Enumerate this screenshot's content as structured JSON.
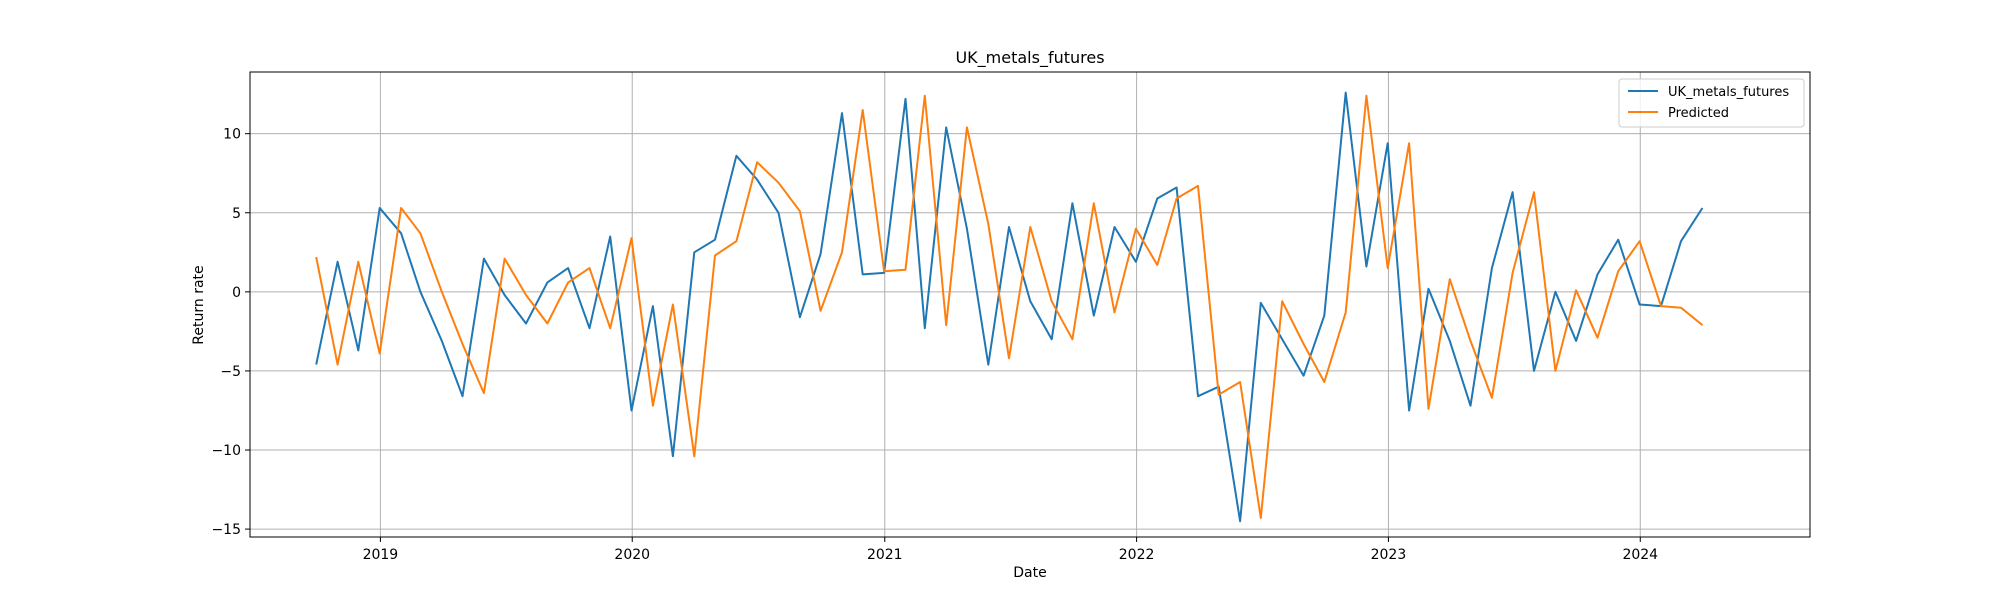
{
  "chart_data": {
    "type": "line",
    "title": "UK_metals_futures",
    "xlabel": "Date",
    "ylabel": "Return rate",
    "x_tick_labels": [
      "2019",
      "2020",
      "2021",
      "2022",
      "2023",
      "2024"
    ],
    "y_ticks": [
      -15,
      -10,
      -5,
      0,
      5,
      10
    ],
    "xlim": [
      "2018-06-26",
      "2024-09-03"
    ],
    "ylim": [
      -15.5,
      13.9
    ],
    "grid": true,
    "legend_position": "top-right",
    "x": [
      "2018-09-30",
      "2018-10-31",
      "2018-11-30",
      "2018-12-31",
      "2019-01-31",
      "2019-02-28",
      "2019-03-31",
      "2019-04-30",
      "2019-05-31",
      "2019-06-30",
      "2019-07-31",
      "2019-08-31",
      "2019-09-30",
      "2019-10-31",
      "2019-11-30",
      "2019-12-31",
      "2020-01-31",
      "2020-02-29",
      "2020-03-31",
      "2020-04-30",
      "2020-05-31",
      "2020-06-30",
      "2020-07-31",
      "2020-08-31",
      "2020-09-30",
      "2020-10-31",
      "2020-11-30",
      "2020-12-31",
      "2021-01-31",
      "2021-02-28",
      "2021-03-31",
      "2021-04-30",
      "2021-05-31",
      "2021-06-30",
      "2021-07-31",
      "2021-08-31",
      "2021-09-30",
      "2021-10-31",
      "2021-11-30",
      "2021-12-31",
      "2022-01-31",
      "2022-02-28",
      "2022-03-31",
      "2022-04-30",
      "2022-05-31",
      "2022-06-30",
      "2022-07-31",
      "2022-08-31",
      "2022-09-30",
      "2022-10-31",
      "2022-11-30",
      "2022-12-31",
      "2023-01-31",
      "2023-02-28",
      "2023-03-31",
      "2023-04-30",
      "2023-05-31",
      "2023-06-30",
      "2023-07-31",
      "2023-08-31",
      "2023-09-30",
      "2023-10-31",
      "2023-11-30",
      "2023-12-31",
      "2024-01-31",
      "2024-02-29",
      "2024-03-31"
    ],
    "series": [
      {
        "name": "UK_metals_futures",
        "color": "#1f77b4",
        "values": [
          -4.6,
          1.9,
          -3.7,
          5.3,
          3.7,
          0.0,
          -3.1,
          -6.6,
          2.1,
          -0.2,
          -2.0,
          0.6,
          1.5,
          -2.3,
          3.5,
          -7.5,
          -0.9,
          -10.4,
          2.5,
          3.3,
          8.6,
          7.1,
          5.0,
          -1.6,
          2.4,
          11.3,
          1.1,
          1.2,
          12.2,
          -2.3,
          10.4,
          4.0,
          -4.6,
          4.1,
          -0.6,
          -3.0,
          5.6,
          -1.5,
          4.1,
          1.9,
          5.9,
          6.6,
          -6.6,
          -6.0,
          -14.5,
          -0.7,
          -3.0,
          -5.3,
          -1.5,
          12.6,
          1.6,
          9.4,
          -7.5,
          0.2,
          -3.1,
          -7.2,
          1.5,
          6.3,
          -5.0,
          0.0,
          -3.1,
          1.1,
          3.3,
          -0.8,
          -0.9,
          3.2,
          5.3
        ]
      },
      {
        "name": "Predicted",
        "color": "#ff7f0e",
        "values": [
          2.2,
          -4.6,
          1.9,
          -3.9,
          5.3,
          3.7,
          0.0,
          -3.3,
          -6.4,
          2.1,
          -0.2,
          -2.0,
          0.6,
          1.5,
          -2.3,
          3.4,
          -7.2,
          -0.8,
          -10.4,
          2.3,
          3.2,
          8.2,
          6.9,
          5.1,
          -1.2,
          2.5,
          11.5,
          1.3,
          1.4,
          12.4,
          -2.1,
          10.4,
          4.3,
          -4.2,
          4.1,
          -0.6,
          -3.0,
          5.6,
          -1.3,
          4.0,
          1.7,
          5.9,
          6.7,
          -6.5,
          -5.7,
          -14.3,
          -0.6,
          -3.3,
          -5.7,
          -1.3,
          12.4,
          1.5,
          9.4,
          -7.4,
          0.8,
          -3.1,
          -6.7,
          1.2,
          6.3,
          -5.0,
          0.1,
          -2.9,
          1.3,
          3.2,
          -0.9,
          -1.0,
          -2.1
        ]
      }
    ]
  }
}
